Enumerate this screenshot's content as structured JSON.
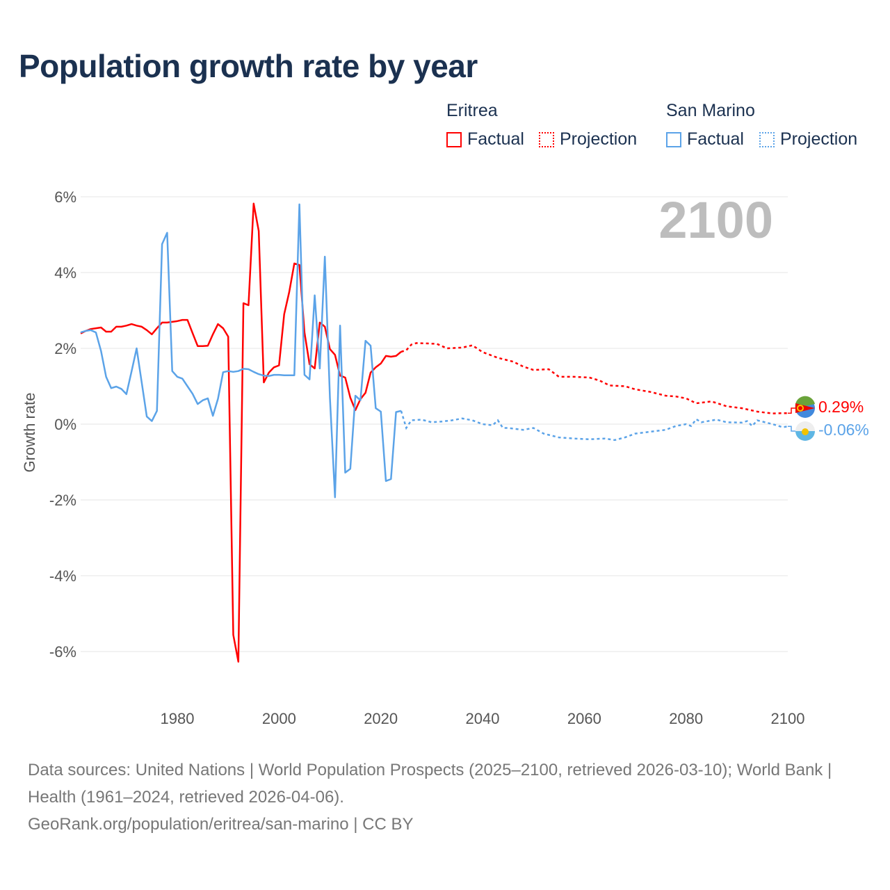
{
  "chart_data": {
    "type": "line",
    "title": "Population growth rate by year",
    "ylabel": "Growth rate",
    "xlabel": "",
    "xlim": [
      1961,
      2100
    ],
    "ylim": [
      -7,
      6.5
    ],
    "x_ticks": [
      1980,
      2000,
      2020,
      2040,
      2060,
      2080,
      2100
    ],
    "x_tick_labels": [
      "1980",
      "2000",
      "2020",
      "2040",
      "2060",
      "2080",
      "2100"
    ],
    "y_ticks": [
      6,
      4,
      2,
      0,
      -2,
      -4,
      -6
    ],
    "y_tick_labels": [
      "6%",
      "4%",
      "2%",
      "0%",
      "-2%",
      "-4%",
      "-6%"
    ],
    "grid": true,
    "year_label": "2100",
    "legend": {
      "placement": "top-right",
      "groups": [
        {
          "name": "Eritrea",
          "factual": "Factual",
          "projection": "Projection"
        },
        {
          "name": "San Marino",
          "factual": "Factual",
          "projection": "Projection"
        }
      ]
    },
    "series": [
      {
        "name": "Eritrea",
        "color": "#ff0000",
        "end_label": "0.29%",
        "factual_start": 1961,
        "factual": [
          2.39,
          2.46,
          2.51,
          2.53,
          2.55,
          2.44,
          2.44,
          2.57,
          2.57,
          2.6,
          2.64,
          2.6,
          2.57,
          2.48,
          2.37,
          2.53,
          2.68,
          2.68,
          2.7,
          2.72,
          2.75,
          2.75,
          2.4,
          2.06,
          2.06,
          2.07,
          2.37,
          2.64,
          2.53,
          2.31,
          -5.56,
          -6.27,
          3.19,
          3.14,
          5.82,
          5.1,
          1.1,
          1.36,
          1.5,
          1.55,
          2.9,
          3.49,
          4.24,
          4.2,
          2.42,
          1.58,
          1.47,
          2.68,
          2.57,
          1.98,
          1.83,
          1.28,
          1.23,
          0.7,
          0.37,
          0.66,
          0.83,
          1.36,
          1.5,
          1.6,
          1.8,
          1.78,
          1.8,
          1.91
        ],
        "projection_x": [
          2024,
          2025,
          2026,
          2027,
          2029,
          2031,
          2033,
          2036,
          2038,
          2040,
          2043,
          2046,
          2048,
          2050,
          2053,
          2055,
          2058,
          2061,
          2063,
          2065,
          2068,
          2070,
          2073,
          2076,
          2078,
          2080,
          2082,
          2085,
          2088,
          2091,
          2094,
          2097,
          2099,
          2100
        ],
        "projection": [
          1.91,
          1.95,
          2.1,
          2.14,
          2.13,
          2.12,
          2.0,
          2.02,
          2.08,
          1.9,
          1.75,
          1.65,
          1.52,
          1.43,
          1.45,
          1.25,
          1.25,
          1.23,
          1.15,
          1.02,
          1.0,
          0.92,
          0.85,
          0.75,
          0.73,
          0.68,
          0.55,
          0.6,
          0.47,
          0.42,
          0.33,
          0.28,
          0.29,
          0.29
        ]
      },
      {
        "name": "San Marino",
        "color": "#5ba3e8",
        "end_label": "-0.06%",
        "factual_start": 1961,
        "factual": [
          2.42,
          2.46,
          2.48,
          2.42,
          1.93,
          1.25,
          0.95,
          0.99,
          0.93,
          0.79,
          1.39,
          2.0,
          1.1,
          0.2,
          0.08,
          0.35,
          4.75,
          5.05,
          1.4,
          1.25,
          1.2,
          1.0,
          0.8,
          0.53,
          0.63,
          0.68,
          0.22,
          0.67,
          1.37,
          1.4,
          1.38,
          1.4,
          1.46,
          1.45,
          1.38,
          1.32,
          1.28,
          1.27,
          1.3,
          1.3,
          1.29,
          1.29,
          1.29,
          5.8,
          1.3,
          1.18,
          3.4,
          1.47,
          4.42,
          0.7,
          -1.93,
          2.6,
          -1.28,
          -1.18,
          0.75,
          0.63,
          2.2,
          2.07,
          0.42,
          0.33,
          -1.5,
          -1.45,
          0.32,
          0.35
        ],
        "projection_x": [
          2024,
          2025,
          2026,
          2028,
          2030,
          2032,
          2034,
          2036,
          2038,
          2040,
          2042,
          2043,
          2044,
          2045,
          2048,
          2050,
          2052,
          2055,
          2058,
          2061,
          2064,
          2066,
          2068,
          2070,
          2073,
          2076,
          2078,
          2080,
          2081,
          2082,
          2083,
          2086,
          2088,
          2091,
          2092,
          2093,
          2094,
          2097,
          2099,
          2100
        ],
        "projection": [
          0.35,
          -0.1,
          0.1,
          0.12,
          0.05,
          0.07,
          0.1,
          0.15,
          0.1,
          0.0,
          -0.03,
          0.1,
          -0.1,
          -0.1,
          -0.15,
          -0.1,
          -0.25,
          -0.35,
          -0.38,
          -0.4,
          -0.38,
          -0.42,
          -0.35,
          -0.25,
          -0.2,
          -0.15,
          -0.05,
          0.0,
          -0.05,
          0.13,
          0.05,
          0.12,
          0.05,
          0.04,
          0.08,
          -0.05,
          0.1,
          0.0,
          -0.08,
          -0.06
        ]
      }
    ]
  },
  "sources": {
    "line1": "Data sources: United Nations | World Population Prospects (2025–2100, retrieved 2026-03-10); World Bank | Health (1961–2024, retrieved 2026-04-06).",
    "line2": "GeoRank.org/population/eritrea/san-marino | CC BY"
  }
}
